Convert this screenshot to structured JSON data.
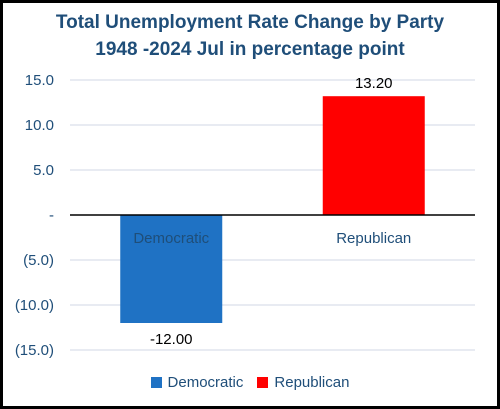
{
  "chart_data": {
    "type": "bar",
    "title_line_1": "Total Unemployment Rate Change by Party",
    "title_line_2": "1948 -2024 Jul in percentage point",
    "categories": [
      "Democratic",
      "Republican"
    ],
    "values": [
      -12.0,
      13.2
    ],
    "data_labels": [
      "-12.00",
      "13.20"
    ],
    "colors": [
      "#1f72c4",
      "#ff0000"
    ],
    "ylim": [
      -15,
      15
    ],
    "yticks": [
      15,
      10,
      5,
      0,
      -5,
      -10,
      -15
    ],
    "ytick_labels": [
      "15.0",
      "10.0",
      "5.0",
      "-",
      "(5.0)",
      "(10.0)",
      "(15.0)"
    ],
    "grid": true,
    "legend_position": "bottom",
    "legend": [
      "Democratic",
      "Republican"
    ]
  }
}
